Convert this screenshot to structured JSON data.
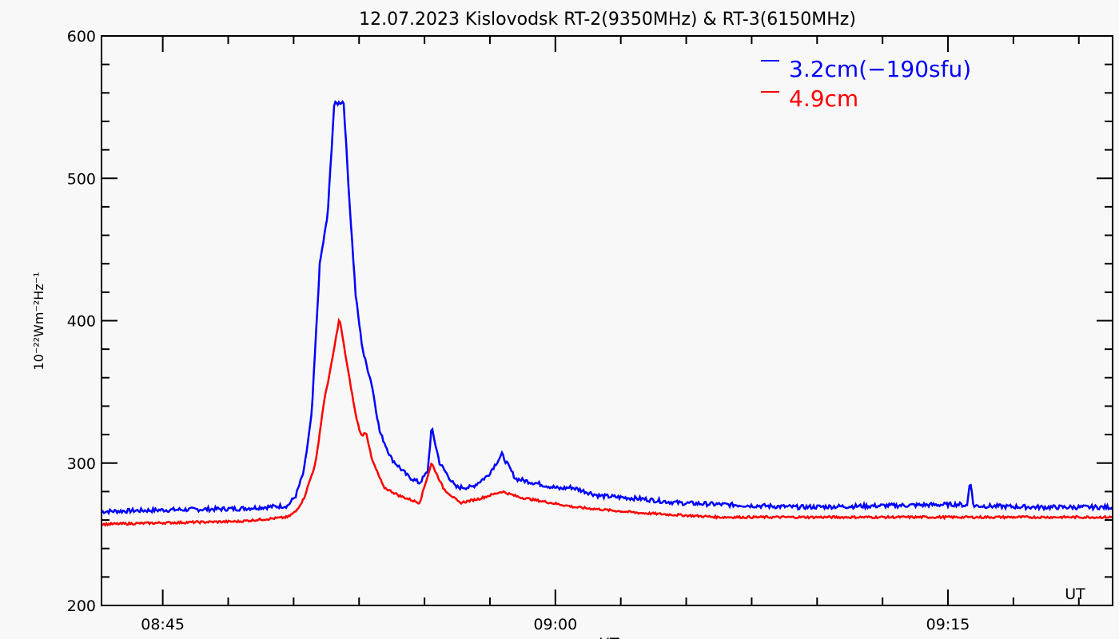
{
  "chart_data": {
    "type": "line",
    "title": "12.07.2023 Kislovodsk RT-2(9350MHz) & RT-3(6150MHz)",
    "xlabel": "UT",
    "x_corner_label": "UT",
    "ylabel": "10⁻²²Wm⁻²Hz⁻¹",
    "x_units": "minutes after 08:00 UT",
    "xlim": [
      42.66,
      81.29
    ],
    "ylim": [
      200,
      600
    ],
    "x_ticks": [
      {
        "value": 45,
        "label": "08:45"
      },
      {
        "value": 60,
        "label": "09:00"
      },
      {
        "value": 75,
        "label": "09:15"
      }
    ],
    "y_ticks": [
      {
        "value": 200,
        "label": "200"
      },
      {
        "value": 300,
        "label": "300"
      },
      {
        "value": 400,
        "label": "400"
      },
      {
        "value": 500,
        "label": "500"
      },
      {
        "value": 600,
        "label": "600"
      }
    ],
    "grid": false,
    "legend_position": "top-right",
    "series": [
      {
        "name": "3.2cm(−190sfu)",
        "color": "#0000ff",
        "x": [
          42.66,
          44.9,
          47.9,
          49.77,
          50.08,
          50.39,
          50.69,
          51.0,
          51.3,
          51.55,
          51.91,
          52.13,
          52.37,
          52.58,
          52.68,
          52.98,
          53.29,
          53.74,
          54.35,
          54.81,
          55.12,
          55.27,
          55.58,
          56.19,
          56.8,
          57.41,
          57.96,
          58.48,
          59.24,
          60.16,
          60.61,
          61.68,
          63.21,
          64.74,
          66.26,
          69.32,
          72.37,
          75.42,
          75.73,
          75.85,
          75.97,
          78.48,
          81.29
        ],
        "y": [
          266,
          267,
          268,
          270,
          277,
          294,
          334,
          440,
          474,
          552,
          554,
          485,
          418,
          387,
          376,
          356,
          322,
          303,
          291,
          286,
          294,
          325,
          300,
          283,
          283,
          291,
          306,
          289,
          286,
          282,
          283,
          277,
          275,
          272,
          271,
          269,
          270,
          271,
          270,
          289,
          270,
          269,
          269
        ]
      },
      {
        "name": "4.9cm",
        "color": "#ff0000",
        "x": [
          42.66,
          44.9,
          47.9,
          49.77,
          50.08,
          50.39,
          50.84,
          51.15,
          51.45,
          51.75,
          52.06,
          52.37,
          52.58,
          52.77,
          52.98,
          53.44,
          54.05,
          54.81,
          55.27,
          55.73,
          56.34,
          57.1,
          57.96,
          58.63,
          59.55,
          60.77,
          63.21,
          66.26,
          72.37,
          81.29
        ],
        "y": [
          257,
          258,
          259,
          262,
          266,
          275,
          300,
          342,
          370,
          402,
          367,
          334,
          319,
          322,
          303,
          283,
          277,
          272,
          300,
          282,
          272,
          275,
          280,
          276,
          273,
          269,
          265,
          262,
          262,
          262
        ]
      }
    ]
  }
}
